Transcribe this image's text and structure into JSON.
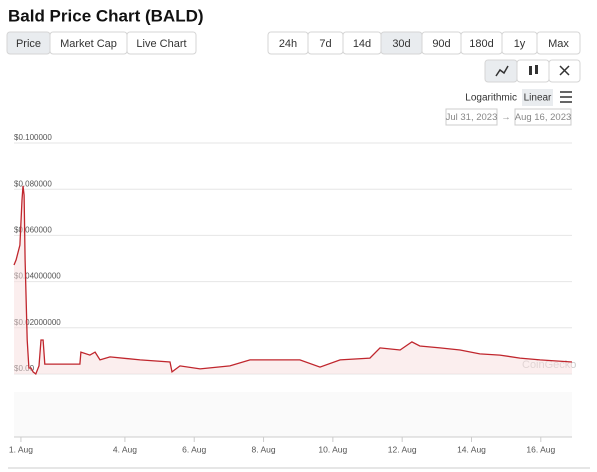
{
  "title": "Bald Price Chart (BALD)",
  "tabs": [
    "Price",
    "Market Cap",
    "Live Chart"
  ],
  "active_tab": "Price",
  "ranges": [
    "24h",
    "7d",
    "14d",
    "30d",
    "90d",
    "180d",
    "1y",
    "Max"
  ],
  "active_range": "30d",
  "scale_options": [
    "Logarithmic",
    "Linear"
  ],
  "active_scale": "Linear",
  "date_from": "Jul 31, 2023",
  "date_arrow": "→",
  "date_to": "Aug 16, 2023",
  "watermark": "CoinGecko",
  "chart_data": {
    "type": "line",
    "color": "#c0262d",
    "area_color": "#f7dede",
    "grid": true,
    "x": [
      0.8,
      0.86,
      0.97,
      1.03,
      1.06,
      1.09,
      1.12,
      1.18,
      1.23,
      1.29,
      1.35,
      1.43,
      1.52,
      1.58,
      1.64,
      1.69,
      2.7,
      2.73,
      2.99,
      3.14,
      3.28,
      3.57,
      4.44,
      5.3,
      5.36,
      5.59,
      6.17,
      7.03,
      7.61,
      9.05,
      9.63,
      10.21,
      11.07,
      11.36,
      11.94,
      12.28,
      12.51,
      13.09,
      13.67,
      14.24,
      14.82,
      15.4,
      15.98,
      16.9
    ],
    "values": [
      0.0472,
      0.0494,
      0.0558,
      0.0753,
      0.0814,
      0.0775,
      0.0494,
      0.0147,
      0.0026,
      0.0026,
      0.0009,
      0,
      0.0035,
      0.0147,
      0.0147,
      0.0043,
      0.0043,
      0.0095,
      0.0082,
      0.0095,
      0.0061,
      0.0074,
      0.0061,
      0.0052,
      0.0009,
      0.0035,
      0.0022,
      0.0035,
      0.0061,
      0.0061,
      0.003,
      0.0061,
      0.0069,
      0.0113,
      0.0104,
      0.0139,
      0.0121,
      0.0113,
      0.0104,
      0.0087,
      0.0082,
      0.0069,
      0.0061,
      0.0052
    ],
    "xlim": [
      0.8,
      16.9
    ],
    "xticks": [
      {
        "value": 1,
        "label": "1. Aug"
      },
      {
        "value": 4,
        "label": "4. Aug"
      },
      {
        "value": 6,
        "label": "6. Aug"
      },
      {
        "value": 8,
        "label": "8. Aug"
      },
      {
        "value": 10,
        "label": "10. Aug"
      },
      {
        "value": 12,
        "label": "12. Aug"
      },
      {
        "value": 14,
        "label": "14. Aug"
      },
      {
        "value": 16,
        "label": "16. Aug"
      }
    ],
    "ylim": [
      0,
      0.1
    ],
    "yticks": [
      {
        "value": 0,
        "label": "$0.00"
      },
      {
        "value": 0.02,
        "label": "$0.02000000"
      },
      {
        "value": 0.04,
        "label": "$0.04000000"
      },
      {
        "value": 0.06,
        "label": "$0.060000"
      },
      {
        "value": 0.08,
        "label": "$0.080000"
      },
      {
        "value": 0.1,
        "label": "$0.100000"
      }
    ]
  }
}
